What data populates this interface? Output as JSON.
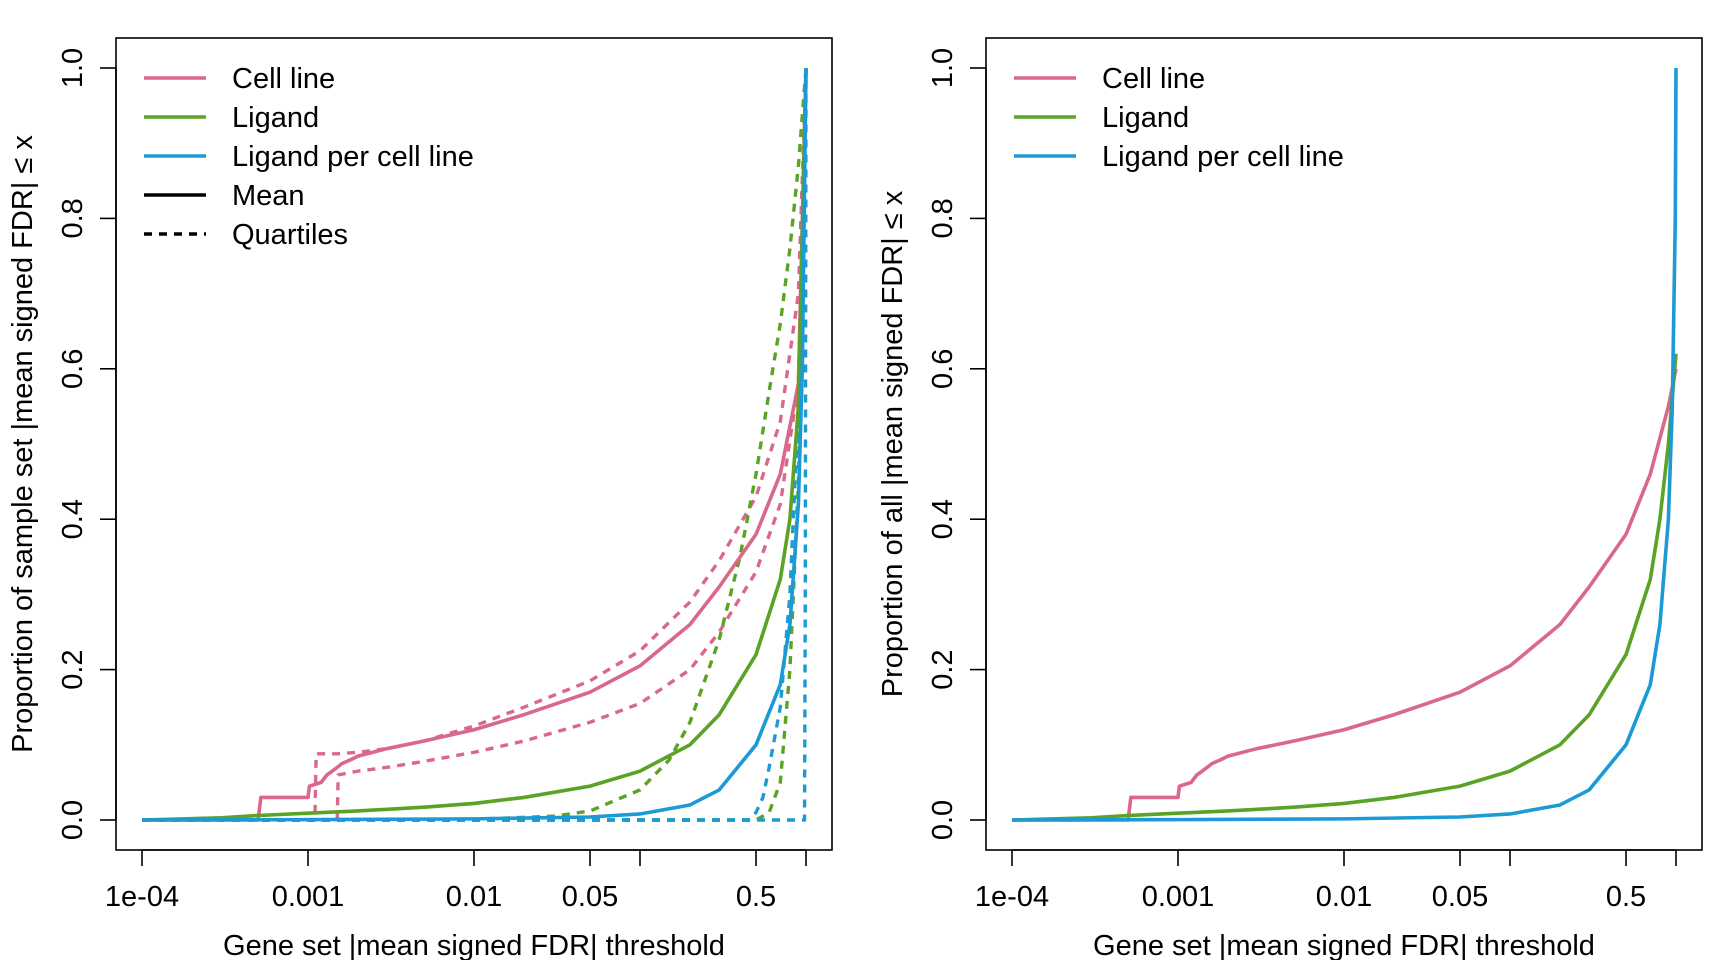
{
  "chart_data": [
    {
      "type": "line",
      "xlabel": "Gene set |mean signed FDR| threshold",
      "ylabel": "Proportion of sample set |mean signed FDR| ≤ x",
      "x_scale": "log10",
      "xlim": [
        0.0001,
        1
      ],
      "ylim": [
        0,
        1
      ],
      "x_ticks": [
        0.0001,
        0.001,
        0.01,
        0.05,
        0.1,
        0.5,
        1
      ],
      "x_tick_labels": [
        "1e-04",
        "0.001",
        "0.01",
        "0.05",
        "",
        "0.5",
        ""
      ],
      "y_ticks": [
        0,
        0.2,
        0.4,
        0.6,
        0.8,
        1
      ],
      "y_tick_labels": [
        "0.0",
        "0.2",
        "0.4",
        "0.6",
        "0.8",
        "1.0"
      ],
      "legend": {
        "position": "top-left",
        "items": [
          {
            "label": "Cell line",
            "color": "#D9688A",
            "style": "solid"
          },
          {
            "label": "Ligand",
            "color": "#5AA325",
            "style": "solid"
          },
          {
            "label": "Ligand per cell line",
            "color": "#1B9AD6",
            "style": "solid"
          },
          {
            "label": "Mean",
            "color": "#000000",
            "style": "solid"
          },
          {
            "label": "Quartiles",
            "color": "#000000",
            "style": "dashed"
          }
        ]
      },
      "series": [
        {
          "name": "Cell line",
          "stat": "Mean",
          "color": "#D9688A",
          "dash": false,
          "x": [
            0.0001,
            0.0005,
            0.00052,
            0.001,
            0.00102,
            0.0012,
            0.0013,
            0.0014,
            0.0015,
            0.0016,
            0.0018,
            0.002,
            0.003,
            0.005,
            0.01,
            0.02,
            0.05,
            0.1,
            0.2,
            0.3,
            0.5,
            0.7,
            0.9,
            1
          ],
          "y": [
            0,
            0,
            0.03,
            0.03,
            0.045,
            0.05,
            0.06,
            0.065,
            0.07,
            0.075,
            0.08,
            0.085,
            0.095,
            0.105,
            0.12,
            0.14,
            0.17,
            0.205,
            0.26,
            0.31,
            0.38,
            0.46,
            0.58,
            1.0
          ]
        },
        {
          "name": "Cell line",
          "stat": "Quartile",
          "color": "#D9688A",
          "dash": true,
          "x": [
            0.0001,
            0.0011,
            0.00112,
            0.0015,
            0.002,
            0.003,
            0.005,
            0.01,
            0.02,
            0.05,
            0.1,
            0.2,
            0.3,
            0.5,
            0.7,
            0.9,
            1
          ],
          "y": [
            0,
            0,
            0.088,
            0.088,
            0.09,
            0.095,
            0.105,
            0.125,
            0.15,
            0.185,
            0.225,
            0.29,
            0.345,
            0.43,
            0.53,
            0.7,
            1.0
          ]
        },
        {
          "name": "Cell line",
          "stat": "Quartile",
          "color": "#D9688A",
          "dash": true,
          "x": [
            0.0001,
            0.0015,
            0.00152,
            0.002,
            0.003,
            0.005,
            0.01,
            0.02,
            0.05,
            0.1,
            0.2,
            0.3,
            0.5,
            0.7,
            0.9,
            1
          ],
          "y": [
            0,
            0,
            0.06,
            0.065,
            0.07,
            0.078,
            0.09,
            0.105,
            0.13,
            0.155,
            0.2,
            0.25,
            0.33,
            0.42,
            0.58,
            1.0
          ]
        },
        {
          "name": "Ligand",
          "stat": "Mean",
          "color": "#5AA325",
          "dash": false,
          "x": [
            0.0001,
            0.0003,
            0.0005,
            0.001,
            0.002,
            0.005,
            0.01,
            0.02,
            0.05,
            0.1,
            0.2,
            0.3,
            0.5,
            0.7,
            0.8,
            0.9,
            1
          ],
          "y": [
            0,
            0.003,
            0.006,
            0.009,
            0.012,
            0.017,
            0.022,
            0.03,
            0.045,
            0.065,
            0.1,
            0.14,
            0.22,
            0.32,
            0.4,
            0.55,
            1.0
          ]
        },
        {
          "name": "Ligand",
          "stat": "Quartile",
          "color": "#5AA325",
          "dash": true,
          "x": [
            0.0001,
            0.01,
            0.03,
            0.05,
            0.1,
            0.15,
            0.2,
            0.3,
            0.4,
            0.5,
            0.6,
            0.7,
            0.8,
            0.9,
            1
          ],
          "y": [
            0,
            0.001,
            0.005,
            0.012,
            0.04,
            0.08,
            0.13,
            0.24,
            0.35,
            0.46,
            0.57,
            0.66,
            0.76,
            0.87,
            1.0
          ]
        },
        {
          "name": "Ligand",
          "stat": "Quartile",
          "color": "#5AA325",
          "dash": true,
          "x": [
            0.0001,
            0.5,
            0.6,
            0.7,
            0.8,
            0.9,
            0.95,
            1
          ],
          "y": [
            0,
            0,
            0.01,
            0.05,
            0.2,
            0.45,
            0.68,
            1.0
          ]
        },
        {
          "name": "Ligand per cell line",
          "stat": "Mean",
          "color": "#1B9AD6",
          "dash": false,
          "x": [
            0.0001,
            0.001,
            0.01,
            0.05,
            0.1,
            0.2,
            0.3,
            0.5,
            0.7,
            0.8,
            0.9,
            0.95,
            1
          ],
          "y": [
            0,
            0.0005,
            0.0015,
            0.004,
            0.008,
            0.02,
            0.04,
            0.1,
            0.18,
            0.26,
            0.42,
            0.6,
            1.0
          ]
        },
        {
          "name": "Ligand per cell line",
          "stat": "Quartile",
          "color": "#1B9AD6",
          "dash": true,
          "x": [
            0.0001,
            0.45,
            0.5,
            0.55,
            0.6,
            0.7,
            0.8,
            0.9,
            1
          ],
          "y": [
            0,
            0,
            0.01,
            0.03,
            0.07,
            0.15,
            0.3,
            0.55,
            1.0
          ]
        },
        {
          "name": "Ligand per cell line",
          "stat": "Quartile",
          "color": "#1B9AD6",
          "dash": true,
          "x": [
            0.0001,
            0.98,
            0.99,
            1
          ],
          "y": [
            0,
            0,
            0.3,
            1.0
          ]
        }
      ]
    },
    {
      "type": "line",
      "xlabel": "Gene set |mean signed FDR| threshold",
      "ylabel": "Proportion of all |mean signed FDR| ≤ x",
      "x_scale": "log10",
      "xlim": [
        0.0001,
        1
      ],
      "ylim": [
        0,
        1
      ],
      "x_ticks": [
        0.0001,
        0.001,
        0.01,
        0.05,
        0.1,
        0.5,
        1
      ],
      "x_tick_labels": [
        "1e-04",
        "0.001",
        "0.01",
        "0.05",
        "",
        "0.5",
        ""
      ],
      "y_ticks": [
        0,
        0.2,
        0.4,
        0.6,
        0.8,
        1
      ],
      "y_tick_labels": [
        "0.0",
        "0.2",
        "0.4",
        "0.6",
        "0.8",
        "1.0"
      ],
      "legend": {
        "position": "top-left",
        "items": [
          {
            "label": "Cell line",
            "color": "#D9688A",
            "style": "solid"
          },
          {
            "label": "Ligand",
            "color": "#5AA325",
            "style": "solid"
          },
          {
            "label": "Ligand per cell line",
            "color": "#1B9AD6",
            "style": "solid"
          }
        ]
      },
      "series": [
        {
          "name": "Cell line",
          "color": "#D9688A",
          "dash": false,
          "x": [
            0.0001,
            0.0005,
            0.00052,
            0.0008,
            0.001,
            0.00102,
            0.0012,
            0.0013,
            0.0014,
            0.0015,
            0.0016,
            0.0018,
            0.002,
            0.003,
            0.005,
            0.01,
            0.02,
            0.05,
            0.1,
            0.2,
            0.3,
            0.5,
            0.7,
            0.9,
            1
          ],
          "y": [
            0,
            0,
            0.03,
            0.03,
            0.03,
            0.045,
            0.05,
            0.06,
            0.065,
            0.07,
            0.075,
            0.08,
            0.085,
            0.095,
            0.105,
            0.12,
            0.14,
            0.17,
            0.205,
            0.26,
            0.31,
            0.38,
            0.46,
            0.55,
            0.6
          ]
        },
        {
          "name": "Ligand",
          "color": "#5AA325",
          "dash": false,
          "x": [
            0.0001,
            0.0003,
            0.0005,
            0.001,
            0.002,
            0.005,
            0.01,
            0.02,
            0.05,
            0.1,
            0.2,
            0.3,
            0.5,
            0.7,
            0.8,
            0.9,
            1
          ],
          "y": [
            0,
            0.003,
            0.006,
            0.009,
            0.012,
            0.017,
            0.022,
            0.03,
            0.045,
            0.065,
            0.1,
            0.14,
            0.22,
            0.32,
            0.4,
            0.5,
            0.62
          ]
        },
        {
          "name": "Ligand per cell line",
          "color": "#1B9AD6",
          "dash": false,
          "x": [
            0.0001,
            0.001,
            0.01,
            0.05,
            0.1,
            0.2,
            0.3,
            0.5,
            0.7,
            0.8,
            0.9,
            0.95,
            0.99,
            1
          ],
          "y": [
            0,
            0.0005,
            0.0015,
            0.004,
            0.008,
            0.02,
            0.04,
            0.1,
            0.18,
            0.26,
            0.4,
            0.55,
            0.8,
            1.0
          ]
        }
      ]
    }
  ]
}
